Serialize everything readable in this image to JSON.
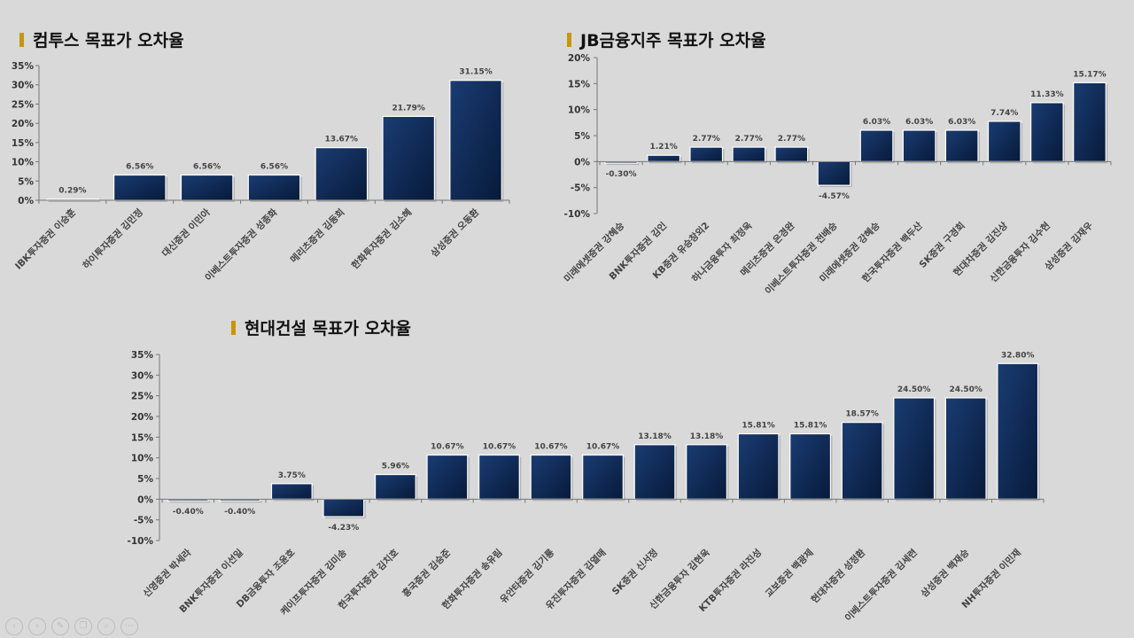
{
  "charts": [
    {
      "title": "컴투스 목표가 오차율",
      "chart_data": {
        "type": "bar",
        "categories": [
          "IBK투자증권 이승훈",
          "하이투자증권 김민정",
          "대신증권 이민아",
          "이베스트투자증권 성종화",
          "메리츠증권 김동희",
          "한화투자증권 김소혜",
          "삼성증권 오동환"
        ],
        "values": [
          0.29,
          6.56,
          6.56,
          6.56,
          13.67,
          21.79,
          31.15
        ],
        "value_labels": [
          "0.29%",
          "6.56%",
          "6.56%",
          "6.56%",
          "13.67%",
          "21.79%",
          "31.15%"
        ],
        "ylim": [
          0,
          35
        ],
        "yticks": [
          0,
          5,
          10,
          15,
          20,
          25,
          30,
          35
        ],
        "ytick_labels": [
          "0%",
          "5%",
          "10%",
          "15%",
          "20%",
          "25%",
          "30%",
          "35%"
        ],
        "bar_color": "#0f2a56",
        "grid": false,
        "xlabel": "",
        "ylabel": ""
      }
    },
    {
      "title": "JB금융지주 목표가 오차율",
      "chart_data": {
        "type": "bar",
        "categories": [
          "미래에셋증권 강혜승",
          "BNK투자증권 김인",
          "KB증권 유승창외2",
          "하나금융투자 최정욱",
          "메리츠증권 은경완",
          "이베스트투자증권 전배승",
          "미래에셋증권 강혜승",
          "한국투자증권 백두산",
          "SK증권 구경회",
          "현대차증권 김진상",
          "신한금융투자 김수현",
          "삼성증권 김재우"
        ],
        "values": [
          -0.3,
          1.21,
          2.77,
          2.77,
          2.77,
          -4.57,
          6.03,
          6.03,
          6.03,
          7.74,
          11.33,
          15.17
        ],
        "value_labels": [
          "-0.30%",
          "1.21%",
          "2.77%",
          "2.77%",
          "2.77%",
          "-4.57%",
          "6.03%",
          "6.03%",
          "6.03%",
          "7.74%",
          "11.33%",
          "15.17%"
        ],
        "ylim": [
          -10,
          20
        ],
        "yticks": [
          -10,
          -5,
          0,
          5,
          10,
          15,
          20
        ],
        "ytick_labels": [
          "-10%",
          "-5%",
          "0%",
          "5%",
          "10%",
          "15%",
          "20%"
        ],
        "bar_color": "#0f2a56",
        "grid": false,
        "xlabel": "",
        "ylabel": ""
      }
    },
    {
      "title": "현대건설 목표가 오차율",
      "chart_data": {
        "type": "bar",
        "categories": [
          "신영증권 박세라",
          "BNK투자증권 이선일",
          "DB금융투자 조윤호",
          "케이프투자증권 김미송",
          "한국투자증권 김치호",
          "흥국증권 김승준",
          "한화투자증권 송유림",
          "유안타증권 김기룡",
          "유진투자증권 김열매",
          "SK증권 신서정",
          "신한금융투자 김현욱",
          "KTB투자증권 라진성",
          "교보증권 백광제",
          "현대차증권 성정환",
          "이베스트투자증권 김세련",
          "삼성증권 백재승",
          "NH투자증권 이민재"
        ],
        "values": [
          -0.4,
          -0.4,
          3.75,
          -4.23,
          5.96,
          10.67,
          10.67,
          10.67,
          10.67,
          13.18,
          13.18,
          15.81,
          15.81,
          18.57,
          24.5,
          24.5,
          32.8
        ],
        "value_labels": [
          "-0.40%",
          "-0.40%",
          "3.75%",
          "-4.23%",
          "5.96%",
          "10.67%",
          "10.67%",
          "10.67%",
          "10.67%",
          "13.18%",
          "13.18%",
          "15.81%",
          "15.81%",
          "18.57%",
          "24.50%",
          "24.50%",
          "32.80%"
        ],
        "ylim": [
          -10,
          35
        ],
        "yticks": [
          -10,
          -5,
          0,
          5,
          10,
          15,
          20,
          25,
          30,
          35
        ],
        "ytick_labels": [
          "-10%",
          "-5%",
          "0%",
          "5%",
          "10%",
          "15%",
          "20%",
          "25%",
          "30%",
          "35%"
        ],
        "bar_color": "#0f2a56",
        "grid": false,
        "xlabel": "",
        "ylabel": ""
      }
    }
  ],
  "toolbar": {
    "icons": [
      "prev-icon",
      "next-icon",
      "pen-icon",
      "copy-icon",
      "zoom-icon",
      "more-icon"
    ],
    "glyphs": [
      "‹",
      "›",
      "✎",
      "❐",
      "⌕",
      "⋯"
    ]
  }
}
